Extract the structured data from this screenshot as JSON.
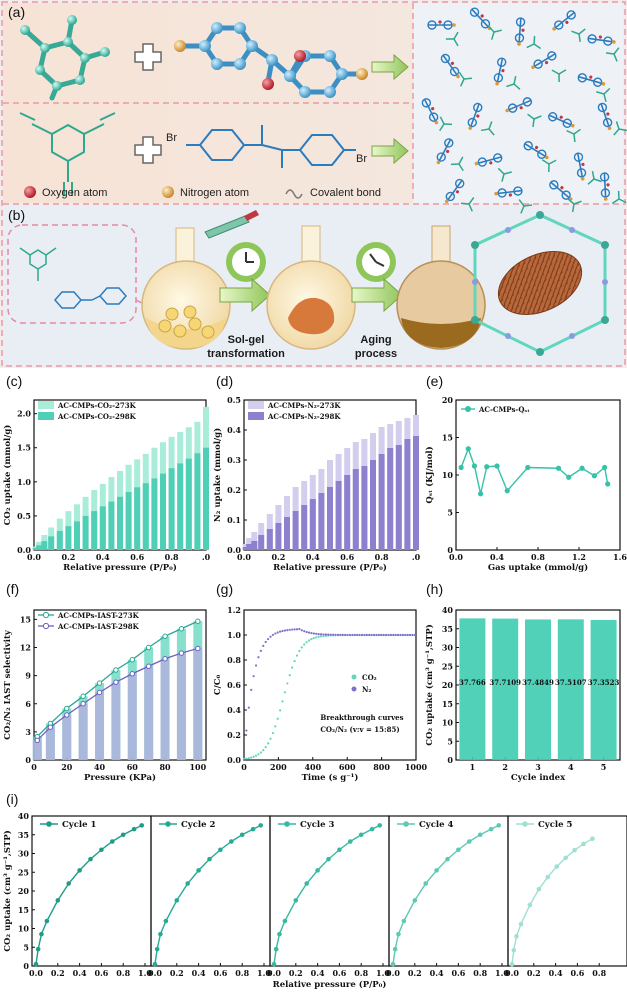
{
  "scheme": {
    "label_a": "(a)",
    "label_b": "(b)",
    "legend": {
      "oxygen": "Oxygen atom",
      "nitrogen": "Nitrogen atom",
      "bond": "Covalent bond"
    },
    "br1": "Br",
    "br2": "Br",
    "step1": [
      "Sol-gel",
      "transformation"
    ],
    "step2": [
      "Aging",
      "process"
    ]
  },
  "chart_data": [
    {
      "id": "c",
      "type": "bar",
      "panel": "(c)",
      "xlabel": "Relative pressure (P/P₀)",
      "ylabel": "CO₂ uptake (mmol/g)",
      "xlim": [
        0,
        1.0
      ],
      "ylim": [
        0,
        2.2
      ],
      "xticks": [
        "0.0",
        "0.2",
        "0.4",
        "0.6",
        "0.8",
        ".0"
      ],
      "xtick_vals": [
        0,
        0.2,
        0.4,
        0.6,
        0.8,
        1.0
      ],
      "yticks": [
        "0.0",
        "0.5",
        "1.0",
        "1.5",
        "2.0"
      ],
      "ytick_vals": [
        0,
        0.5,
        1.0,
        1.5,
        2.0
      ],
      "x": [
        0.01,
        0.03,
        0.06,
        0.1,
        0.15,
        0.2,
        0.25,
        0.3,
        0.35,
        0.4,
        0.45,
        0.5,
        0.55,
        0.6,
        0.65,
        0.7,
        0.75,
        0.8,
        0.85,
        0.9,
        0.95,
        1.0
      ],
      "series": [
        {
          "name": "AC-CMPs-CO₂-273K",
          "color": "#a9ecd9",
          "values": [
            0.05,
            0.12,
            0.22,
            0.33,
            0.46,
            0.57,
            0.67,
            0.78,
            0.88,
            0.97,
            1.07,
            1.16,
            1.25,
            1.33,
            1.41,
            1.5,
            1.58,
            1.66,
            1.73,
            1.8,
            1.88,
            2.1
          ]
        },
        {
          "name": "AC-CMPs-CO₂-298K",
          "color": "#4fd0b6",
          "values": [
            0.03,
            0.07,
            0.13,
            0.2,
            0.28,
            0.35,
            0.42,
            0.5,
            0.57,
            0.64,
            0.71,
            0.78,
            0.85,
            0.92,
            0.98,
            1.05,
            1.12,
            1.2,
            1.27,
            1.34,
            1.42,
            1.5
          ]
        }
      ]
    },
    {
      "id": "d",
      "type": "bar",
      "panel": "(d)",
      "xlabel": "Relative pressure (P/P₀)",
      "ylabel": "N₂ uptake (mmol/g)",
      "xlim": [
        0,
        1.0
      ],
      "ylim": [
        0,
        0.5
      ],
      "xticks": [
        "0.0",
        "0.2",
        "0.4",
        "0.6",
        "0.8",
        ".0"
      ],
      "xtick_vals": [
        0,
        0.2,
        0.4,
        0.6,
        0.8,
        1.0
      ],
      "yticks": [
        "0.0",
        "0.1",
        "0.2",
        "0.3",
        "0.4",
        "0.5"
      ],
      "ytick_vals": [
        0,
        0.1,
        0.2,
        0.3,
        0.4,
        0.5
      ],
      "x": [
        0.01,
        0.03,
        0.06,
        0.1,
        0.15,
        0.2,
        0.25,
        0.3,
        0.35,
        0.4,
        0.45,
        0.5,
        0.55,
        0.6,
        0.65,
        0.7,
        0.75,
        0.8,
        0.85,
        0.9,
        0.95,
        1.0
      ],
      "series": [
        {
          "name": "AC-CMPs-N₂-273K",
          "color": "#d3cdee",
          "values": [
            0.02,
            0.04,
            0.06,
            0.09,
            0.12,
            0.15,
            0.18,
            0.21,
            0.23,
            0.25,
            0.27,
            0.3,
            0.32,
            0.34,
            0.36,
            0.37,
            0.39,
            0.41,
            0.42,
            0.43,
            0.44,
            0.45
          ]
        },
        {
          "name": "AC-CMPs-N₂-298K",
          "color": "#8d80cf",
          "values": [
            0.01,
            0.02,
            0.03,
            0.05,
            0.07,
            0.09,
            0.11,
            0.13,
            0.15,
            0.17,
            0.19,
            0.21,
            0.23,
            0.25,
            0.27,
            0.28,
            0.3,
            0.32,
            0.34,
            0.35,
            0.37,
            0.38
          ]
        }
      ]
    },
    {
      "id": "e",
      "type": "line",
      "panel": "(e)",
      "xlabel": "Gas uptake (mmol/g)",
      "ylabel": "Qₛₜ (KJ/mol)",
      "xlim": [
        0,
        1.6
      ],
      "ylim": [
        0,
        20
      ],
      "xticks": [
        "0.0",
        "0.4",
        "0.8",
        "1.2",
        "1.6"
      ],
      "xtick_vals": [
        0,
        0.4,
        0.8,
        1.2,
        1.6
      ],
      "yticks": [
        "0",
        "5",
        "10",
        "15",
        "20"
      ],
      "ytick_vals": [
        0,
        5,
        10,
        15,
        20
      ],
      "series": [
        {
          "name": "AC-CMPs-Qₛₜ",
          "color": "#35c2a8",
          "x": [
            0.05,
            0.12,
            0.18,
            0.24,
            0.3,
            0.4,
            0.5,
            0.7,
            1.0,
            1.1,
            1.23,
            1.35,
            1.45,
            1.48
          ],
          "values": [
            11.0,
            13.5,
            11.2,
            7.5,
            11.1,
            11.2,
            7.9,
            11.0,
            10.9,
            9.7,
            10.9,
            9.9,
            11.0,
            8.8
          ]
        }
      ]
    },
    {
      "id": "f",
      "type": "bar",
      "panel": "(f)",
      "xlabel": "Pressure (KPa)",
      "ylabel": "CO₂/N₂ IAST selectivity",
      "xlim": [
        0,
        105
      ],
      "ylim": [
        0,
        16
      ],
      "xticks": [
        "0",
        "20",
        "40",
        "60",
        "80",
        "100"
      ],
      "xtick_vals": [
        0,
        20,
        40,
        60,
        80,
        100
      ],
      "yticks": [
        "0",
        "3",
        "6",
        "9",
        "12",
        "15"
      ],
      "ytick_vals": [
        0,
        3,
        6,
        9,
        12,
        15
      ],
      "x": [
        2,
        10,
        20,
        30,
        40,
        50,
        60,
        70,
        80,
        90,
        100
      ],
      "series": [
        {
          "name": "AC-CMPs-IAST-273K",
          "color": "#5fd6bd",
          "values": [
            2.5,
            3.9,
            5.5,
            6.8,
            8.2,
            9.6,
            10.7,
            12.0,
            13.2,
            14.0,
            14.8
          ]
        },
        {
          "name": "AC-CMPs-IAST-298K",
          "color": "#b3aee0",
          "values": [
            2.1,
            3.5,
            4.8,
            6.0,
            7.2,
            8.3,
            9.2,
            10.0,
            10.8,
            11.4,
            11.9
          ]
        }
      ]
    },
    {
      "id": "g",
      "type": "scatter",
      "panel": "(g)",
      "xlabel": "Time (s g⁻¹)",
      "ylabel": "C/C₀",
      "xlim": [
        0,
        1000
      ],
      "ylim": [
        0,
        1.2
      ],
      "xticks": [
        "0",
        "200",
        "400",
        "600",
        "800",
        "1000"
      ],
      "xtick_vals": [
        0,
        200,
        400,
        600,
        800,
        1000
      ],
      "yticks": [
        "0.0",
        "0.2",
        "0.4",
        "0.6",
        "0.8",
        "1.0",
        "1.2"
      ],
      "ytick_vals": [
        0,
        0.2,
        0.4,
        0.6,
        0.8,
        1.0,
        1.2
      ],
      "annotation": [
        "Breakthrough curves",
        "CO₂/N₂ (v:v = 15:85)"
      ],
      "series": [
        {
          "name": "CO₂",
          "color": "#5fd6bd"
        },
        {
          "name": "N₂",
          "color": "#7f70c8"
        }
      ]
    },
    {
      "id": "h",
      "type": "bar",
      "panel": "(h)",
      "xlabel": "Cycle index",
      "ylabel": "CO₂ uptake (cm³ g⁻¹,STP)",
      "xlim": [
        0.5,
        5.5
      ],
      "ylim": [
        0,
        40
      ],
      "xticks": [
        "1",
        "2",
        "3",
        "4",
        "5"
      ],
      "xtick_vals": [
        1,
        2,
        3,
        4,
        5
      ],
      "yticks": [
        "0",
        "5",
        "10",
        "15",
        "20",
        "25",
        "30",
        "35",
        "40"
      ],
      "ytick_vals": [
        0,
        5,
        10,
        15,
        20,
        25,
        30,
        35,
        40
      ],
      "categories": [
        "1",
        "2",
        "3",
        "4",
        "5"
      ],
      "values": [
        37.766,
        37.7109,
        37.4849,
        37.5107,
        37.3523
      ],
      "labels": [
        "37.766",
        "37.7109",
        "37.4849",
        "37.5107",
        "37.3523"
      ],
      "color": "#3ecdb0"
    },
    {
      "id": "i",
      "type": "line",
      "panel": "(i)",
      "xlabel": "Relative pressure (P/P₀)",
      "ylabel": "CO₂ uptake (cm³ g⁻¹,STP)",
      "ylim": [
        0,
        40
      ],
      "yticks": [
        "0",
        "5",
        "10",
        "15",
        "20",
        "25",
        "30",
        "35",
        "40"
      ],
      "ytick_vals": [
        0,
        5,
        10,
        15,
        20,
        25,
        30,
        35,
        40
      ],
      "x": [
        0.0,
        0.02,
        0.05,
        0.1,
        0.2,
        0.3,
        0.4,
        0.5,
        0.6,
        0.7,
        0.8,
        0.9,
        0.97
      ],
      "values": [
        0.5,
        4.5,
        8.5,
        12.0,
        17.5,
        22.0,
        25.5,
        28.5,
        31.0,
        33.2,
        35.0,
        36.5,
        37.5
      ],
      "cycles": [
        {
          "name": "Cycle 1",
          "color": "#1f9c88",
          "xticks": [
            "0.0",
            "0.2",
            "0.4",
            "0.6",
            "0.8",
            "1.0"
          ]
        },
        {
          "name": "Cycle 2",
          "color": "#27aa93",
          "xticks": [
            "0.0",
            "0.2",
            "0.4",
            "0.6",
            "0.8",
            "1.0"
          ]
        },
        {
          "name": "Cycle 3",
          "color": "#37b9a1",
          "xticks": [
            "0.0",
            "0.2",
            "0.4",
            "0.6",
            "0.8",
            "1.0"
          ]
        },
        {
          "name": "Cycle 4",
          "color": "#5ec9b4",
          "xticks": [
            "0.0",
            "0.2",
            "0.4",
            "0.6",
            "0.8",
            "1.0"
          ]
        },
        {
          "name": "Cycle 5",
          "color": "#9fe0d2",
          "xticks": [
            "0.0",
            "0.2",
            "0.4",
            "0.6",
            "0.8"
          ]
        }
      ]
    }
  ]
}
